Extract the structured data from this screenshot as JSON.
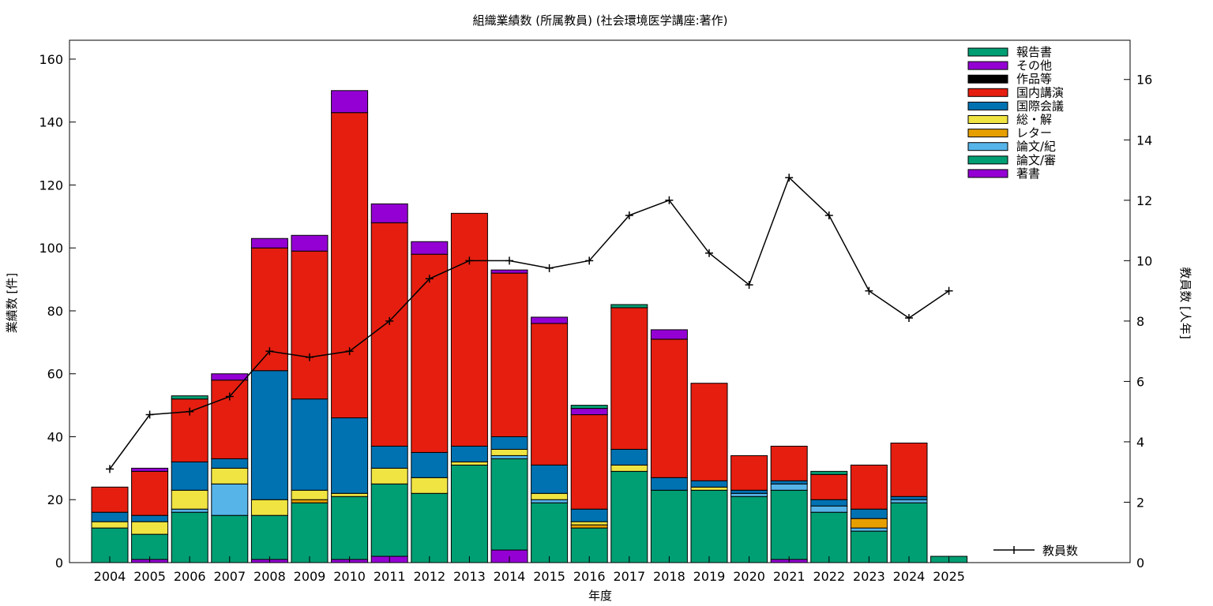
{
  "chart_data": {
    "type": "bar",
    "stacked": true,
    "title": "組織業績数 (所属教員) (社会環境医学講座:著作)",
    "xlabel": "年度",
    "ylabel": "業績数 [件]",
    "y2label": "教員数 [人年]",
    "ylim": [
      0,
      166
    ],
    "y2lim": [
      0,
      17.3
    ],
    "yticks": [
      0,
      20,
      40,
      60,
      80,
      100,
      120,
      140,
      160
    ],
    "y2ticks": [
      0,
      2,
      4,
      6,
      8,
      10,
      12,
      14,
      16
    ],
    "legend_position": "top-right",
    "categories": [
      "2004",
      "2005",
      "2006",
      "2007",
      "2008",
      "2009",
      "2010",
      "2011",
      "2012",
      "2013",
      "2014",
      "2015",
      "2016",
      "2017",
      "2018",
      "2019",
      "2020",
      "2021",
      "2022",
      "2023",
      "2024",
      "2025"
    ],
    "series": [
      {
        "name": "著書",
        "color": "#9400d3",
        "values": [
          0,
          1,
          0,
          0,
          1,
          0,
          1,
          2,
          0,
          0,
          4,
          0,
          0,
          0,
          0,
          0,
          0,
          1,
          0,
          0,
          0,
          0
        ]
      },
      {
        "name": "論文/審",
        "color": "#009e73",
        "values": [
          11,
          8,
          16,
          15,
          14,
          19,
          20,
          23,
          22,
          31,
          29,
          19,
          11,
          29,
          23,
          23,
          21,
          22,
          16,
          10,
          19,
          0
        ]
      },
      {
        "name": "論文/紀",
        "color": "#56b4e9",
        "values": [
          0,
          0,
          1,
          10,
          0,
          0,
          0,
          0,
          0,
          0,
          1,
          1,
          0,
          0,
          0,
          0,
          1,
          2,
          2,
          1,
          1,
          0
        ]
      },
      {
        "name": "レター",
        "color": "#e69f00",
        "values": [
          0,
          0,
          0,
          0,
          0,
          1,
          0,
          0,
          0,
          0,
          0,
          0,
          1,
          0,
          0,
          0,
          0,
          0,
          0,
          3,
          0,
          0
        ]
      },
      {
        "name": "総・解",
        "color": "#f0e442",
        "values": [
          2,
          4,
          6,
          5,
          5,
          3,
          1,
          5,
          5,
          1,
          2,
          2,
          1,
          2,
          0,
          1,
          0,
          0,
          0,
          0,
          0,
          0
        ]
      },
      {
        "name": "国際会議",
        "color": "#0072b2",
        "values": [
          3,
          2,
          9,
          3,
          41,
          29,
          24,
          7,
          8,
          5,
          4,
          9,
          4,
          5,
          4,
          2,
          1,
          1,
          2,
          3,
          1,
          0
        ]
      },
      {
        "name": "国内講演",
        "color": "#e51e10",
        "values": [
          8,
          14,
          20,
          25,
          39,
          47,
          97,
          71,
          63,
          74,
          52,
          45,
          30,
          45,
          44,
          31,
          11,
          11,
          8,
          14,
          17,
          0
        ]
      },
      {
        "name": "作品等",
        "color": "#000000",
        "values": [
          0,
          0,
          0,
          0,
          0,
          0,
          0,
          0,
          0,
          0,
          0,
          0,
          0,
          0,
          0,
          0,
          0,
          0,
          0,
          0,
          0,
          0
        ]
      },
      {
        "name": "その他",
        "color": "#9400d3",
        "values": [
          0,
          1,
          0,
          2,
          3,
          5,
          7,
          6,
          4,
          0,
          1,
          2,
          2,
          0,
          3,
          0,
          0,
          0,
          0,
          0,
          0,
          0
        ]
      },
      {
        "name": "報告書",
        "color": "#009e73",
        "values": [
          0,
          0,
          1,
          0,
          0,
          0,
          0,
          0,
          0,
          0,
          0,
          0,
          1,
          1,
          0,
          0,
          0,
          0,
          1,
          0,
          0,
          2
        ]
      }
    ],
    "legend_order": [
      "報告書",
      "その他",
      "作品等",
      "国内講演",
      "国際会議",
      "総・解",
      "レター",
      "論文/紀",
      "論文/審",
      "著書"
    ],
    "line": {
      "name": "教員数",
      "color": "#000000",
      "values": [
        3.1,
        4.9,
        5.0,
        5.5,
        7.0,
        6.8,
        7.0,
        8.0,
        9.4,
        10.0,
        10.0,
        9.75,
        10.0,
        11.5,
        12.0,
        10.25,
        9.2,
        12.75,
        11.5,
        9.0,
        8.1,
        9.0
      ]
    }
  }
}
